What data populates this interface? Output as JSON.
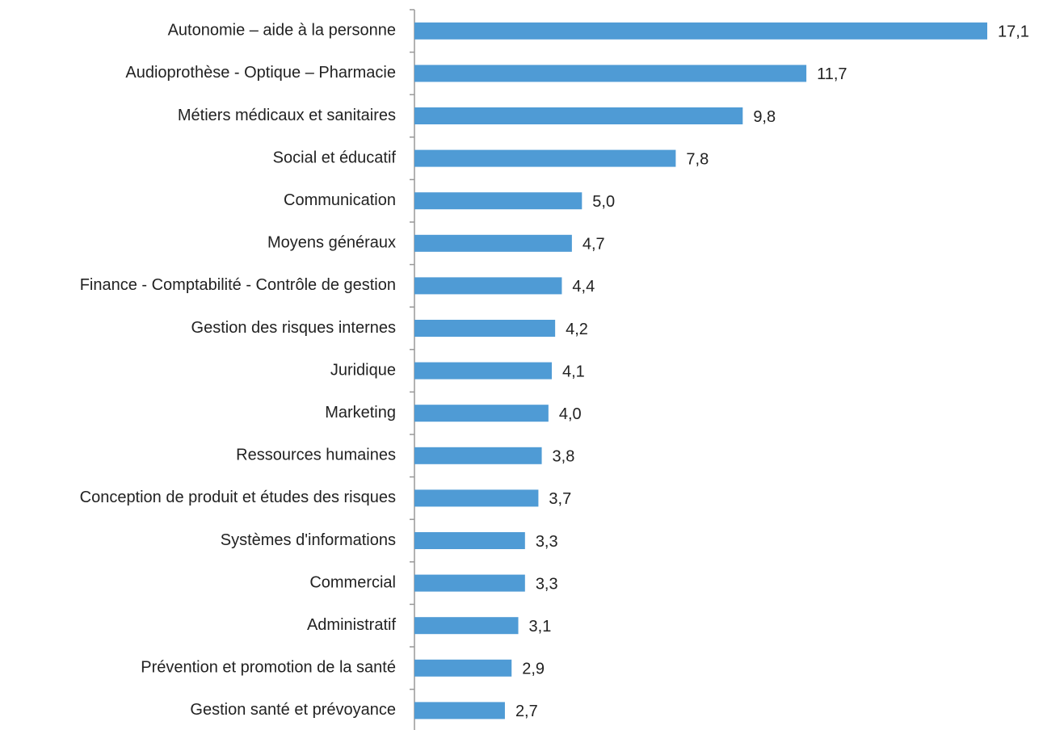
{
  "chart_data": {
    "type": "bar",
    "orientation": "horizontal",
    "color": "#4f9bd5",
    "categories": [
      "Autonomie – aide à la personne",
      "Audioprothèse - Optique – Pharmacie",
      "Métiers médicaux et sanitaires",
      "Social et éducatif",
      "Communication",
      "Moyens généraux",
      "Finance - Comptabilité - Contrôle de gestion",
      "Gestion des risques internes",
      "Juridique",
      "Marketing",
      "Ressources humaines",
      "Conception de produit et études des risques",
      "Systèmes d'informations",
      "Commercial",
      "Administratif",
      "Prévention et promotion de la santé",
      "Gestion santé et prévoyance"
    ],
    "values": [
      17.1,
      11.7,
      9.8,
      7.8,
      5.0,
      4.7,
      4.4,
      4.2,
      4.1,
      4.0,
      3.8,
      3.7,
      3.3,
      3.3,
      3.1,
      2.9,
      2.7
    ],
    "value_labels": [
      "17,1",
      "11,7",
      "9,8",
      "7,8",
      "5,0",
      "4,7",
      "4,4",
      "4,2",
      "4,1",
      "4,0",
      "3,8",
      "3,7",
      "3,3",
      "3,3",
      "3,1",
      "2,9",
      "2,7"
    ]
  }
}
